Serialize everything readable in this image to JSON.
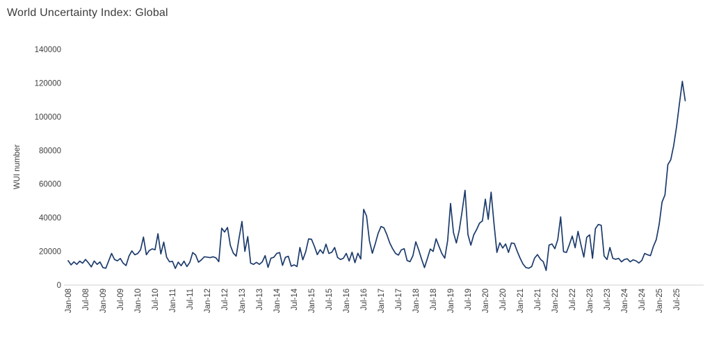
{
  "title": "World Uncertainty Index: Global",
  "chart_data": {
    "type": "line",
    "title": "World Uncertainty Index: Global",
    "ylabel": "WUI number",
    "xlabel": "",
    "ylim": [
      0,
      140000
    ],
    "y_ticks": [
      0,
      20000,
      40000,
      60000,
      80000,
      100000,
      120000,
      140000
    ],
    "grid": false,
    "legend_position": "none",
    "frequency": "monthly",
    "x_start_label": "Jan-08",
    "x_end_label": "Jul-25",
    "x_tick_labels": [
      "Jan-08",
      "Jul-08",
      "Jan-09",
      "Jul-09",
      "Jan-10",
      "Jul-10",
      "Jan-11",
      "Jul-11",
      "Jan-12",
      "Jul-12",
      "Jan-13",
      "Jul-13",
      "Jan-14",
      "Jul-14",
      "Jan-15",
      "Jul-15",
      "Jan-16",
      "Jul-16",
      "Jan-17",
      "Jul-17",
      "Jan-18",
      "Jul-18",
      "Jan-19",
      "Jul-19",
      "Jan-20",
      "Jul-20",
      "Jan-21",
      "Jul-21",
      "Jan-22",
      "Jul-22",
      "Jan-23",
      "Jul-23",
      "Jan-24",
      "Jul-24",
      "Jan-25",
      "Jul-25"
    ],
    "x_ticks_every_n_months": 6,
    "series": [
      {
        "name": "WUI number",
        "color": "#1b3a6b",
        "start_month": "2008-01",
        "end_month": "2025-10",
        "values": [
          14500,
          12000,
          13800,
          12300,
          14200,
          13000,
          15200,
          13200,
          10800,
          14300,
          12300,
          13700,
          10400,
          10000,
          14400,
          18800,
          15200,
          14400,
          15800,
          13000,
          11600,
          17200,
          20300,
          18000,
          18700,
          21000,
          28500,
          18000,
          20500,
          21500,
          21000,
          30500,
          18500,
          25500,
          16500,
          13800,
          14100,
          9900,
          13600,
          11500,
          14200,
          11000,
          13500,
          19300,
          17900,
          13600,
          15000,
          16800,
          16600,
          16300,
          16800,
          16200,
          13900,
          33800,
          31500,
          34200,
          23500,
          19000,
          17200,
          28000,
          37800,
          20000,
          28800,
          13000,
          12300,
          13500,
          12300,
          13800,
          17500,
          10500,
          16000,
          16500,
          18800,
          19300,
          11700,
          16500,
          17100,
          11200,
          12000,
          11000,
          22300,
          15000,
          19800,
          27400,
          27200,
          23000,
          18100,
          21000,
          18800,
          24300,
          18800,
          19500,
          22300,
          16400,
          15200,
          15900,
          18800,
          14300,
          19500,
          13300,
          18900,
          15500,
          45000,
          41000,
          26300,
          18900,
          24500,
          30700,
          34800,
          34000,
          30000,
          25100,
          21600,
          18800,
          17800,
          20900,
          21600,
          14600,
          13900,
          17400,
          25700,
          20900,
          15400,
          10400,
          15800,
          21400,
          20000,
          27500,
          23000,
          18700,
          16000,
          26500,
          48500,
          31200,
          25000,
          32600,
          44000,
          56300,
          30000,
          23700,
          29800,
          33000,
          36800,
          38100,
          51000,
          39000,
          55200,
          36400,
          19400,
          25100,
          22000,
          24400,
          19400,
          25000,
          24700,
          20100,
          16000,
          12500,
          10400,
          10000,
          11000,
          16000,
          18100,
          15400,
          13900,
          8700,
          23800,
          24400,
          21600,
          27000,
          40500,
          19800,
          19400,
          24000,
          29100,
          22200,
          31900,
          24000,
          16600,
          28400,
          29800,
          15900,
          33500,
          36000,
          35500,
          17300,
          15200,
          22300,
          15900,
          15300,
          15900,
          13800,
          15200,
          15600,
          13800,
          15000,
          14400,
          13100,
          14600,
          18800,
          18000,
          17500,
          22900,
          27000,
          36000,
          49300,
          53500,
          71500,
          74400,
          82700,
          94000,
          107800,
          121000,
          109500
        ]
      }
    ],
    "axis_line_color": "#d9d9d9",
    "tick_text_color": "#404040",
    "background_color": "#ffffff"
  }
}
